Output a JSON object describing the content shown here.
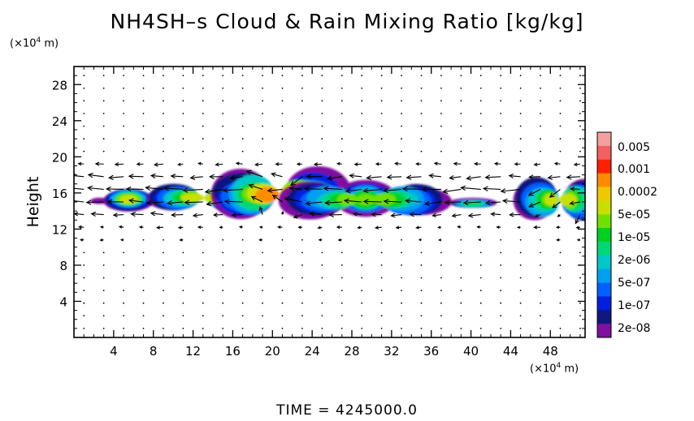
{
  "title": "NH4SH–s Cloud & Rain Mixing Ratio [kg/kg]",
  "time_label": "TIME",
  "time_value": "4245000.0",
  "chart_data": {
    "type": "heatmap",
    "title": "NH4SH–s Cloud & Rain Mixing Ratio [kg/kg]",
    "xlabel": "",
    "ylabel": "Height",
    "x_unit_prefix": "(×10",
    "x_unit_exp": "4",
    "x_unit_suffix": " m)",
    "y_unit_prefix": "(×10",
    "y_unit_exp": "4",
    "y_unit_suffix": " m)",
    "xlim": [
      0,
      51.5
    ],
    "ylim": [
      0,
      30
    ],
    "x_ticks": [
      4,
      8,
      12,
      16,
      20,
      24,
      28,
      32,
      36,
      40,
      44,
      48
    ],
    "y_ticks": [
      4,
      8,
      12,
      16,
      20,
      24,
      28
    ],
    "colorbar": {
      "labels": [
        "0.005",
        "0.001",
        "0.0002",
        "5e-05",
        "1e-05",
        "2e-06",
        "5e-07",
        "1e-07",
        "2e-08"
      ],
      "colors": [
        "#f4a0a0",
        "#f46060",
        "#ff2000",
        "#ff8c00",
        "#f0c800",
        "#c8e000",
        "#70e000",
        "#00d020",
        "#00d878",
        "#00c8c8",
        "#00a0f0",
        "#0060ff",
        "#0020e0",
        "#101880",
        "#8010a0"
      ]
    },
    "cloud_regions": [
      {
        "x": [
          2.2,
          2.9
        ],
        "y": [
          14.8,
          15.6
        ],
        "peak": "2e-08"
      },
      {
        "x": [
          4.0,
          7.0
        ],
        "y": [
          14.0,
          16.6
        ],
        "peak": "5e-05"
      },
      {
        "x": [
          9.8,
          16.2
        ],
        "y": [
          14.0,
          17.0
        ],
        "peak": "5e-05"
      },
      {
        "x": [
          16.8,
          24.6
        ],
        "y": [
          13.2,
          18.4
        ],
        "peak": "0.0002"
      },
      {
        "x": [
          23.8,
          35.0
        ],
        "y": [
          13.4,
          17.2
        ],
        "peak": "1e-05"
      },
      {
        "x": [
          38.6,
          41.8
        ],
        "y": [
          14.2,
          15.4
        ],
        "peak": "2e-06"
      },
      {
        "x": [
          46.4,
          51.5
        ],
        "y": [
          13.0,
          17.4
        ],
        "peak": "5e-05"
      }
    ],
    "wind_vectors": "velocity arrows over the domain; strongest near 12-20 (x10^4 m) height, mostly directed toward negative x"
  }
}
